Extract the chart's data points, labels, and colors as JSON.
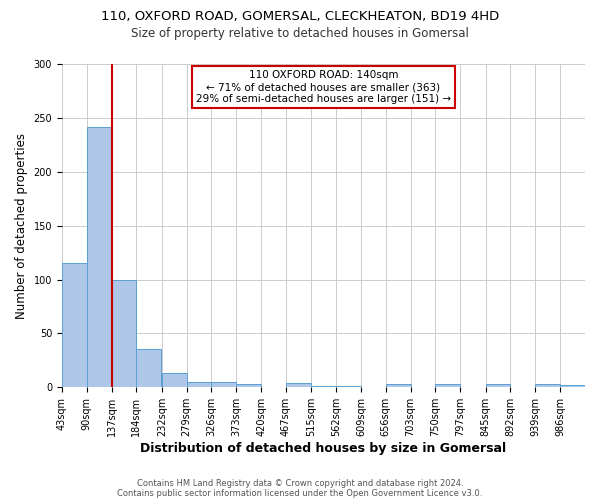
{
  "title_line1": "110, OXFORD ROAD, GOMERSAL, CLECKHEATON, BD19 4HD",
  "title_line2": "Size of property relative to detached houses in Gomersal",
  "xlabel": "Distribution of detached houses by size in Gomersal",
  "ylabel": "Number of detached properties",
  "footer_line1": "Contains HM Land Registry data © Crown copyright and database right 2024.",
  "footer_line2": "Contains public sector information licensed under the Open Government Licence v3.0.",
  "bar_edges": [
    43,
    90,
    137,
    184,
    232,
    279,
    326,
    373,
    420,
    467,
    515,
    562,
    609,
    656,
    703,
    750,
    797,
    845,
    892,
    939,
    986
  ],
  "bar_heights": [
    115,
    242,
    100,
    36,
    13,
    5,
    5,
    3,
    0,
    4,
    1,
    1,
    0,
    3,
    0,
    3,
    0,
    3,
    0,
    3,
    2
  ],
  "bar_color": "#aec6e8",
  "bar_edge_color": "#5a9fd4",
  "reference_line_x": 137,
  "reference_line_color": "#cc0000",
  "annotation_text": "110 OXFORD ROAD: 140sqm\n← 71% of detached houses are smaller (363)\n29% of semi-detached houses are larger (151) →",
  "annotation_box_color": "#cc0000",
  "annotation_text_color": "#000000",
  "ylim": [
    0,
    300
  ],
  "yticks": [
    0,
    50,
    100,
    150,
    200,
    250,
    300
  ],
  "background_color": "#ffffff",
  "grid_color": "#cccccc",
  "title_fontsize": 9.5,
  "subtitle_fontsize": 8.5,
  "axis_label_fontsize": 8.5,
  "tick_fontsize": 7,
  "annotation_fontsize": 7.5,
  "footer_fontsize": 6
}
